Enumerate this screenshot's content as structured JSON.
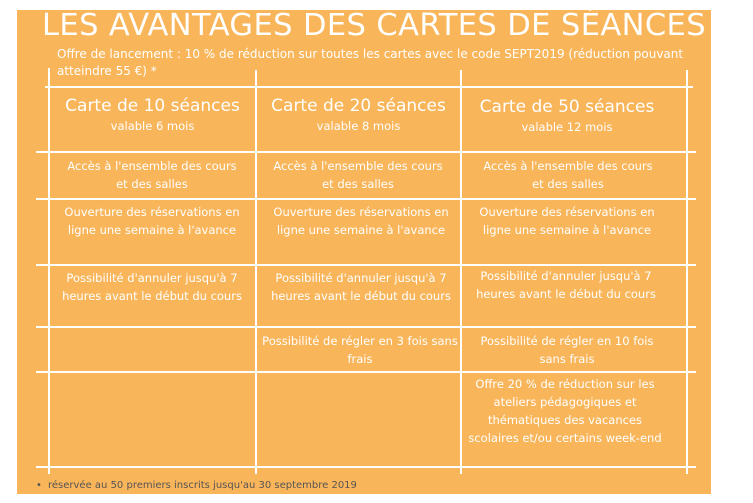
{
  "title": "LES AVANTAGES DES CARTES DE SÉANCES",
  "subtitle": "Offre de lancement : 10 % de réduction sur toutes les cartes avec le code SEPT2019 (réduction pouvant atteindre 55 €) *",
  "columns": [
    {
      "title": "Carte de 10 séances",
      "validity": "valable 6 mois",
      "rows": [
        "Accès à l'ensemble des cours et des salles",
        "Ouverture des réservations en ligne une semaine à l'avance",
        "Possibilité d'annuler jusqu'à 7 heures avant le début du cours",
        "",
        ""
      ]
    },
    {
      "title": "Carte de 20 séances",
      "validity": "valable 8 mois",
      "rows": [
        "Accès à l'ensemble des cours et des salles",
        "Ouverture des réservations en ligne une semaine à l'avance",
        "Possibilité d'annuler jusqu'à 7 heures avant le début du cours",
        "Possibilité de régler en 3 fois sans frais",
        ""
      ]
    },
    {
      "title": "Carte de 50 séances",
      "validity": "valable 12 mois",
      "rows": [
        "Accès à l'ensemble des cours et des salles",
        "Ouverture des réservations en ligne une semaine à l'avance",
        "Possibilité d'annuler jusqu'à 7 heures avant le début du cours",
        "Possibilité de régler en 10 fois sans frais",
        "Offre 20 % de réduction sur les ateliers pédagogiques et thématiques des vacances scolaires et/ou certains week-end"
      ]
    }
  ],
  "footnote": "réservée au 50 premiers inscrits jusqu'au 30 septembre 2019",
  "colors": {
    "background": "#f9b55a",
    "text": "#ffffff"
  }
}
